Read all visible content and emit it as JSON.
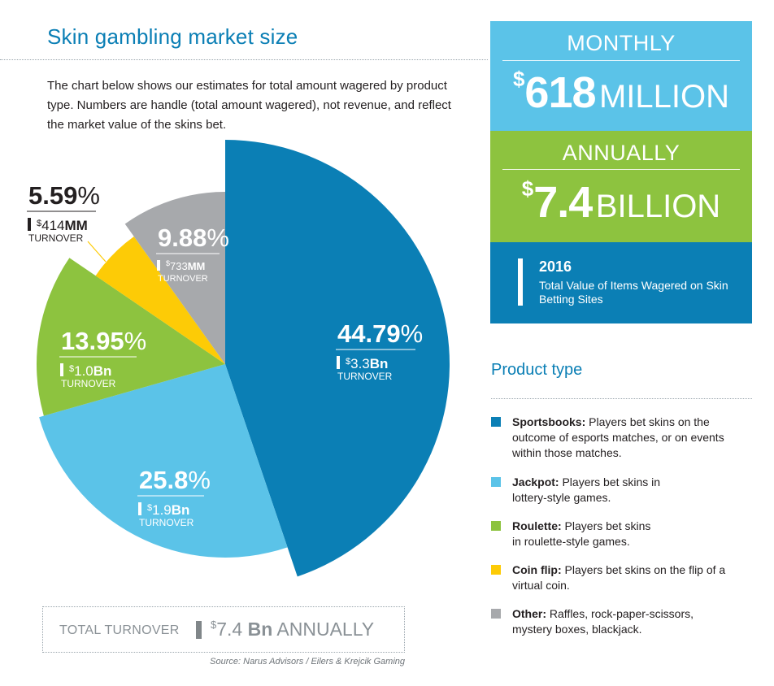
{
  "header": {
    "title": "Skin gambling market size",
    "intro": "The chart below shows our estimates for total amount wagered by product type. Numbers are handle (total amount wagered), not revenue, and reflect the market value of the skins bet."
  },
  "chart_data": {
    "type": "pie",
    "title": "Skin gambling market size",
    "unit": "percent of turnover",
    "slices": [
      {
        "name": "Sportsbooks",
        "value": 44.79,
        "label": "44.79%",
        "turnover_amount": "3.3",
        "turnover_unit": "Bn",
        "turnover_text": "TURNOVER",
        "color": "#0b7fb5"
      },
      {
        "name": "Jackpot",
        "value": 25.8,
        "label": "25.8%",
        "turnover_amount": "1.9",
        "turnover_unit": "Bn",
        "turnover_text": "TURNOVER",
        "color": "#5bc3e8"
      },
      {
        "name": "Roulette",
        "value": 13.95,
        "label": "13.95%",
        "turnover_amount": "1.0",
        "turnover_unit": "Bn",
        "turnover_text": "TURNOVER",
        "color": "#8dc33f"
      },
      {
        "name": "Coin flip",
        "value": 5.59,
        "label": "5.59%",
        "turnover_amount": "414",
        "turnover_unit": "MM",
        "turnover_text": "TURNOVER",
        "color": "#fdcb06"
      },
      {
        "name": "Other",
        "value": 9.88,
        "label": "9.88%",
        "turnover_amount": "733",
        "turnover_unit": "MM",
        "turnover_text": "TURNOVER",
        "color": "#a7a9ac"
      }
    ]
  },
  "summary": {
    "monthly_label": "MONTHLY",
    "monthly_dollar": "$",
    "monthly_amount": "618",
    "monthly_unit": "MILLION",
    "annual_label": "ANNUALLY",
    "annual_dollar": "$",
    "annual_amount": "7.4",
    "annual_unit": "BILLION",
    "year": "2016",
    "year_desc": "Total Value of Items Wagered on Skin Betting Sites"
  },
  "product_types": {
    "title": "Product type",
    "items": [
      {
        "name": "Sportsbooks:",
        "desc": " Players bet skins on the outcome of esports matches, or on events within those matches.",
        "color": "#0b7fb5"
      },
      {
        "name": "Jackpot:",
        "desc": " Players bet skins in lottery-style games.",
        "color": "#5bc3e8"
      },
      {
        "name": "Roulette:",
        "desc": " Players bet skins in roulette-style games.",
        "color": "#8dc33f"
      },
      {
        "name": "Coin flip:",
        "desc": " Players bet skins on the flip of a virtual coin.",
        "color": "#fdcb06"
      },
      {
        "name": "Other:",
        "desc": " Raffles, rock-paper-scissors, mystery boxes, blackjack.",
        "color": "#a7a9ac"
      }
    ]
  },
  "total": {
    "label": "TOTAL TURNOVER",
    "dollar": "$",
    "amount": "7.4",
    "unit": "Bn",
    "suffix": "ANNUALLY"
  },
  "source": "Source: Narus Advisors / Eilers & Krejcik Gaming",
  "currency_symbol": "$"
}
